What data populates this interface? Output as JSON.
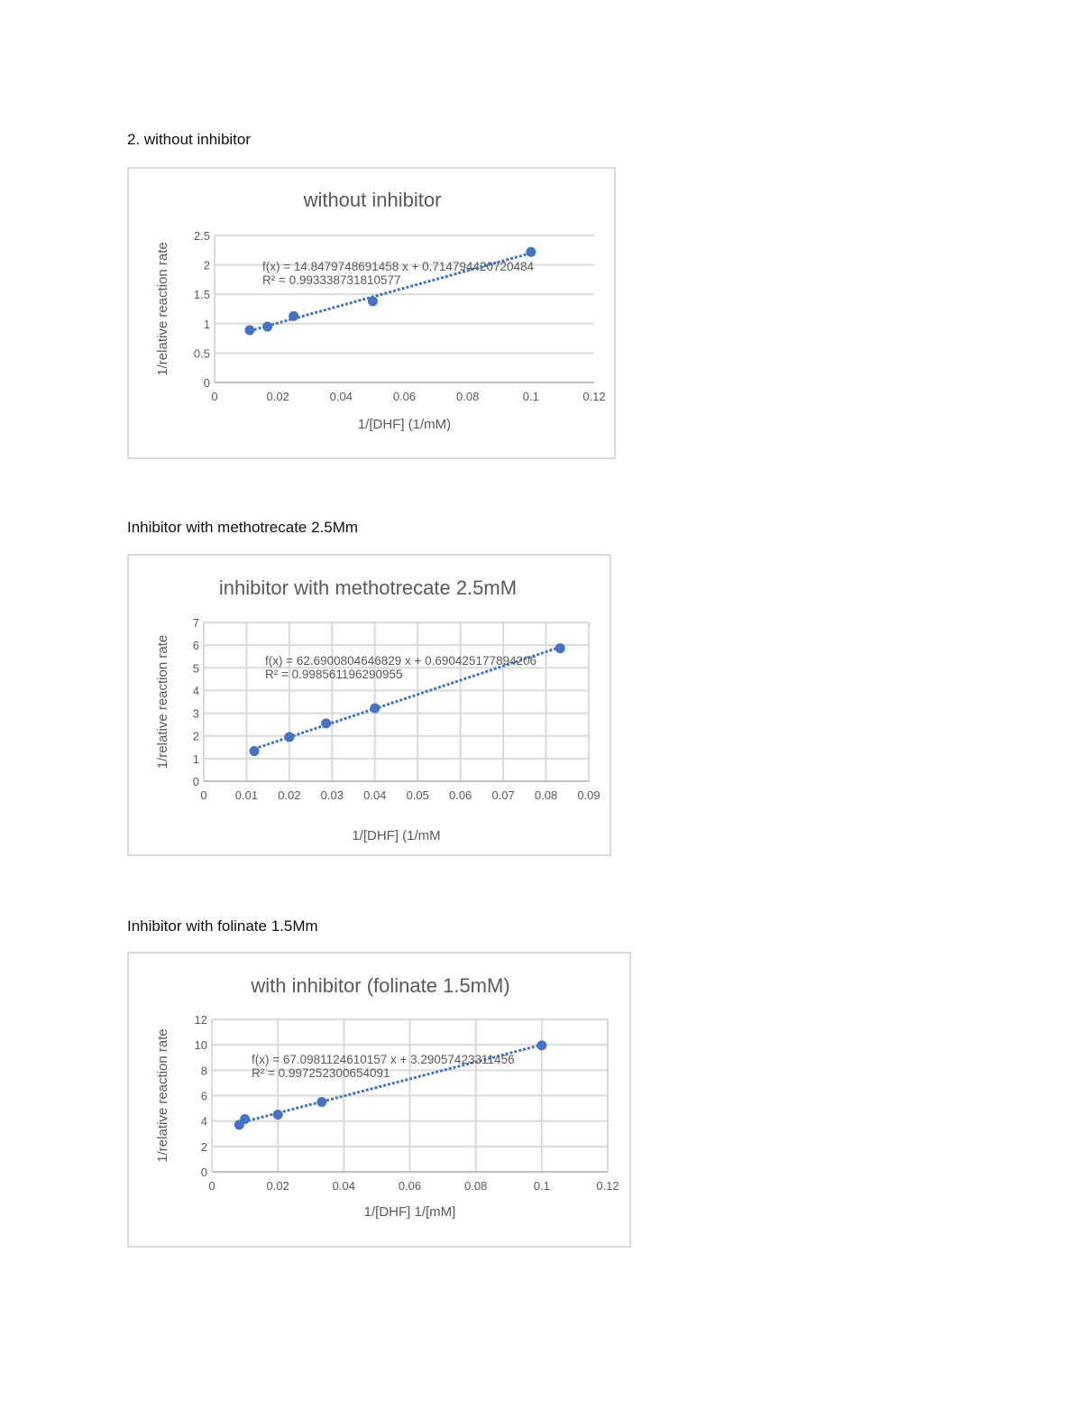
{
  "sections": [
    {
      "heading": "2. without inhibitor"
    },
    {
      "heading": "Inhibitor with methotrecate 2.5Mm"
    },
    {
      "heading": "Inhibitor with folinate 1.5Mm"
    }
  ],
  "colors": {
    "series": "#4472C4",
    "grid": "#d9d9d9",
    "text": "#595959",
    "border": "#d9d9d9"
  },
  "chart_data": [
    {
      "type": "scatter",
      "title": "without inhibitor",
      "xlabel": "1/[DHF] (1/mM)",
      "ylabel": "1/relative reaction rate",
      "xlim": [
        0,
        0.12
      ],
      "ylim": [
        0,
        2.5
      ],
      "xticks": [
        0,
        0.02,
        0.04,
        0.06,
        0.08,
        0.1,
        0.12
      ],
      "xtick_labels": [
        "0",
        "0.02",
        "0.04",
        "0.06",
        "0.08",
        "0.1",
        "0.12"
      ],
      "yticks": [
        0,
        0.5,
        1,
        1.5,
        2,
        2.5
      ],
      "ytick_labels": [
        "0",
        "0.5",
        "1",
        "1.5",
        "2",
        "2.5"
      ],
      "grid": {
        "horizontal": true,
        "vertical": false
      },
      "x": [
        0.0111,
        0.0167,
        0.025,
        0.05,
        0.1
      ],
      "y": [
        0.89,
        0.95,
        1.13,
        1.38,
        2.22
      ],
      "trendline": {
        "slope": 14.8479748691458,
        "intercept": 0.714794420720484,
        "style": "dotted"
      },
      "equation": "f(x) = 14.8479748691458 x + 0.714794420720484",
      "r_squared": "R² = 0.993338731810577"
    },
    {
      "type": "scatter",
      "title": "inhibitor with methotrecate 2.5mM",
      "xlabel": "1/[DHF] (1/mM",
      "ylabel": "1/relative reaction rate",
      "xlim": [
        0,
        0.09
      ],
      "ylim": [
        0,
        7
      ],
      "xticks": [
        0,
        0.01,
        0.02,
        0.03,
        0.04,
        0.05,
        0.06,
        0.07,
        0.08,
        0.09
      ],
      "xtick_labels": [
        "0",
        "0.01",
        "0.02",
        "0.03",
        "0.04",
        "0.05",
        "0.06",
        "0.07",
        "0.08",
        "0.09"
      ],
      "yticks": [
        0,
        1,
        2,
        3,
        4,
        5,
        6,
        7
      ],
      "ytick_labels": [
        "0",
        "1",
        "2",
        "3",
        "4",
        "5",
        "6",
        "7"
      ],
      "grid": {
        "horizontal": true,
        "vertical": true
      },
      "x": [
        0.0118,
        0.02,
        0.0286,
        0.04,
        0.0833
      ],
      "y": [
        1.33,
        1.95,
        2.55,
        3.22,
        5.86
      ],
      "trendline": {
        "slope": 62.6900804646829,
        "intercept": 0.690425177894206,
        "style": "dotted"
      },
      "equation": "f(x) = 62.6900804646829 x + 0.690425177894206",
      "r_squared": "R² = 0.998561196290955"
    },
    {
      "type": "scatter",
      "title": "with inhibitor (folinate 1.5mM)",
      "xlabel": "1/[DHF] 1/[mM]",
      "ylabel": "1/relative reaction rate",
      "xlim": [
        0,
        0.12
      ],
      "ylim": [
        0,
        12
      ],
      "xticks": [
        0,
        0.02,
        0.04,
        0.06,
        0.08,
        0.1,
        0.12
      ],
      "xtick_labels": [
        "0",
        "0.02",
        "0.04",
        "0.06",
        "0.08",
        "0.1",
        "0.12"
      ],
      "yticks": [
        0,
        2,
        4,
        6,
        8,
        10,
        12
      ],
      "ytick_labels": [
        "0",
        "2",
        "4",
        "6",
        "8",
        "10",
        "12"
      ],
      "grid": {
        "horizontal": true,
        "vertical": true
      },
      "x": [
        0.0083,
        0.01,
        0.02,
        0.0333,
        0.1
      ],
      "y": [
        3.7,
        4.15,
        4.5,
        5.5,
        9.95
      ],
      "trendline": {
        "slope": 67.0981124610157,
        "intercept": 3.29057423311456,
        "style": "dotted"
      },
      "equation": "f(x) = 67.0981124610157 x + 3.29057423311456",
      "r_squared": "R² = 0.997252300654091"
    }
  ]
}
